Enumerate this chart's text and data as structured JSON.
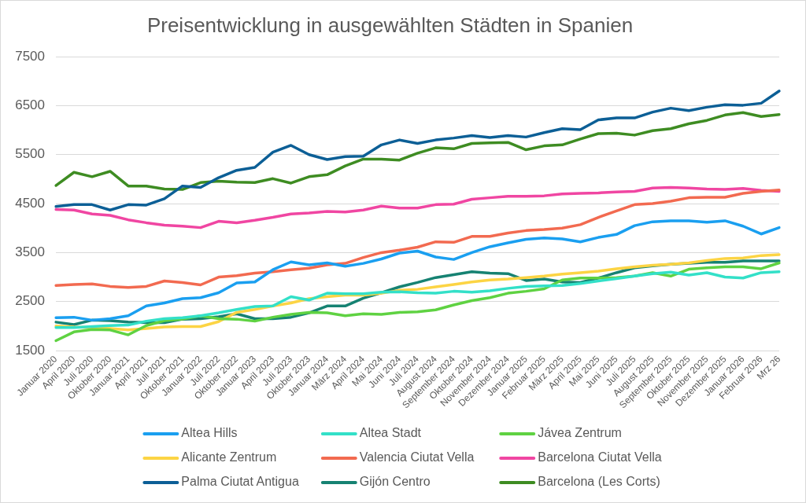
{
  "chart_data": {
    "type": "line",
    "title": "Preisentwicklung in ausgewählten Städten in Spanien",
    "categories": [
      "Januar 2020",
      "April 2020",
      "Juli 2020",
      "Oktober 2020",
      "Januar 2021",
      "April 2021",
      "Juli 2021",
      "Oktober 2021",
      "Januar 2022",
      "Juli 2022",
      "Oktober 2022",
      "Januar 2023",
      "April 2023",
      "Juli 2023",
      "Oktober 2023",
      "Januar 2024",
      "März 2024",
      "April 2024",
      "Mai 2024",
      "Juni 2024",
      "Juli 2024",
      "August 2024",
      "September 2024",
      "Oktober 2024",
      "November 2024",
      "Dezember 2024",
      "Januar 2025",
      "Februar 2025",
      "März 2025",
      "April 2025",
      "Mai 2025",
      "Juni 2025",
      "Juli 2025",
      "August 2025",
      "September 2025",
      "Oktober 2025",
      "November 2025",
      "Dezember 2025",
      "Januar 2026",
      "Februar 2026",
      "Mrz 26"
    ],
    "series": [
      {
        "name": "Altea Hills",
        "color": "#1a9ff0",
        "values": [
          2170,
          2180,
          2120,
          2150,
          2210,
          2410,
          2470,
          2560,
          2580,
          2680,
          2880,
          2900,
          3150,
          3310,
          3250,
          3290,
          3220,
          3280,
          3370,
          3490,
          3530,
          3410,
          3360,
          3500,
          3620,
          3700,
          3770,
          3800,
          3780,
          3720,
          3810,
          3870,
          4050,
          4130,
          4150,
          4150,
          4120,
          4150,
          4040,
          3880,
          4010
        ]
      },
      {
        "name": "Altea Stadt",
        "color": "#33e0c8",
        "values": [
          1970,
          1970,
          1990,
          2010,
          2020,
          2100,
          2150,
          2170,
          2210,
          2270,
          2340,
          2400,
          2410,
          2600,
          2530,
          2670,
          2660,
          2660,
          2690,
          2700,
          2680,
          2670,
          2710,
          2690,
          2720,
          2770,
          2810,
          2820,
          2830,
          2870,
          2920,
          2970,
          3020,
          3070,
          3100,
          3040,
          3090,
          3000,
          2980,
          3090,
          3110
        ]
      },
      {
        "name": "Jávea Zentrum",
        "color": "#5fd242",
        "values": [
          1700,
          1880,
          1930,
          1920,
          1820,
          2010,
          2110,
          2140,
          2210,
          2150,
          2140,
          2100,
          2180,
          2240,
          2280,
          2270,
          2210,
          2250,
          2240,
          2280,
          2290,
          2330,
          2430,
          2520,
          2580,
          2670,
          2710,
          2760,
          2940,
          2980,
          2980,
          2990,
          3020,
          3090,
          3020,
          3160,
          3190,
          3210,
          3210,
          3170,
          3290
        ]
      },
      {
        "name": "Alicante Zentrum",
        "color": "#fcd444",
        "values": [
          2000,
          1980,
          1970,
          1950,
          1920,
          1950,
          1980,
          1990,
          1990,
          2090,
          2280,
          2340,
          2410,
          2470,
          2560,
          2600,
          2630,
          2630,
          2670,
          2730,
          2750,
          2800,
          2850,
          2900,
          2940,
          2960,
          2990,
          3020,
          3060,
          3090,
          3120,
          3170,
          3210,
          3240,
          3260,
          3290,
          3340,
          3380,
          3390,
          3440,
          3460
        ]
      },
      {
        "name": "Valencia Ciutat Vella",
        "color": "#f26a50",
        "values": [
          2830,
          2850,
          2860,
          2810,
          2790,
          2810,
          2920,
          2890,
          2840,
          3000,
          3030,
          3080,
          3110,
          3150,
          3180,
          3250,
          3280,
          3400,
          3500,
          3550,
          3610,
          3720,
          3710,
          3830,
          3830,
          3900,
          3950,
          3970,
          4000,
          4070,
          4220,
          4350,
          4480,
          4500,
          4550,
          4620,
          4630,
          4630,
          4710,
          4750,
          4780
        ]
      },
      {
        "name": "Barcelona Ciutat Vella",
        "color": "#f046a2",
        "values": [
          4380,
          4370,
          4290,
          4260,
          4170,
          4110,
          4060,
          4040,
          4010,
          4140,
          4110,
          4160,
          4220,
          4290,
          4310,
          4340,
          4330,
          4370,
          4450,
          4410,
          4410,
          4480,
          4490,
          4590,
          4620,
          4650,
          4650,
          4660,
          4700,
          4710,
          4720,
          4740,
          4750,
          4820,
          4830,
          4820,
          4800,
          4790,
          4810,
          4770,
          4750
        ]
      },
      {
        "name": "Palma Ciutat Antigua",
        "color": "#0c5f96",
        "values": [
          4440,
          4480,
          4480,
          4370,
          4480,
          4470,
          4600,
          4860,
          4830,
          5030,
          5180,
          5240,
          5550,
          5690,
          5500,
          5400,
          5460,
          5470,
          5700,
          5800,
          5730,
          5800,
          5840,
          5890,
          5850,
          5890,
          5860,
          5950,
          6030,
          6010,
          6210,
          6250,
          6250,
          6370,
          6450,
          6400,
          6470,
          6520,
          6510,
          6550,
          6800
        ]
      },
      {
        "name": "Gijón Centro",
        "color": "#168272",
        "values": [
          2080,
          2030,
          2120,
          2110,
          2080,
          2070,
          2070,
          2140,
          2150,
          2190,
          2250,
          2150,
          2150,
          2180,
          2270,
          2410,
          2410,
          2570,
          2680,
          2800,
          2890,
          2990,
          3050,
          3110,
          3080,
          3070,
          2930,
          2960,
          2900,
          2890,
          2980,
          3090,
          3190,
          3230,
          3260,
          3280,
          3300,
          3300,
          3330,
          3330,
          3330
        ]
      },
      {
        "name": "Barcelona (Les Corts)",
        "color": "#3e8c22",
        "values": [
          4870,
          5140,
          5050,
          5160,
          4860,
          4860,
          4800,
          4790,
          4930,
          4960,
          4940,
          4930,
          5010,
          4920,
          5050,
          5090,
          5270,
          5410,
          5410,
          5390,
          5530,
          5640,
          5620,
          5730,
          5740,
          5750,
          5600,
          5680,
          5700,
          5820,
          5930,
          5940,
          5900,
          5990,
          6030,
          6130,
          6200,
          6310,
          6360,
          6280,
          6320
        ]
      }
    ],
    "ylim": [
      1500,
      7500
    ],
    "yticks": [
      1500,
      2500,
      3500,
      4500,
      5500,
      6500,
      7500
    ],
    "grid": "y",
    "legend": "bottom",
    "marker": "none",
    "line_style": "solid"
  }
}
